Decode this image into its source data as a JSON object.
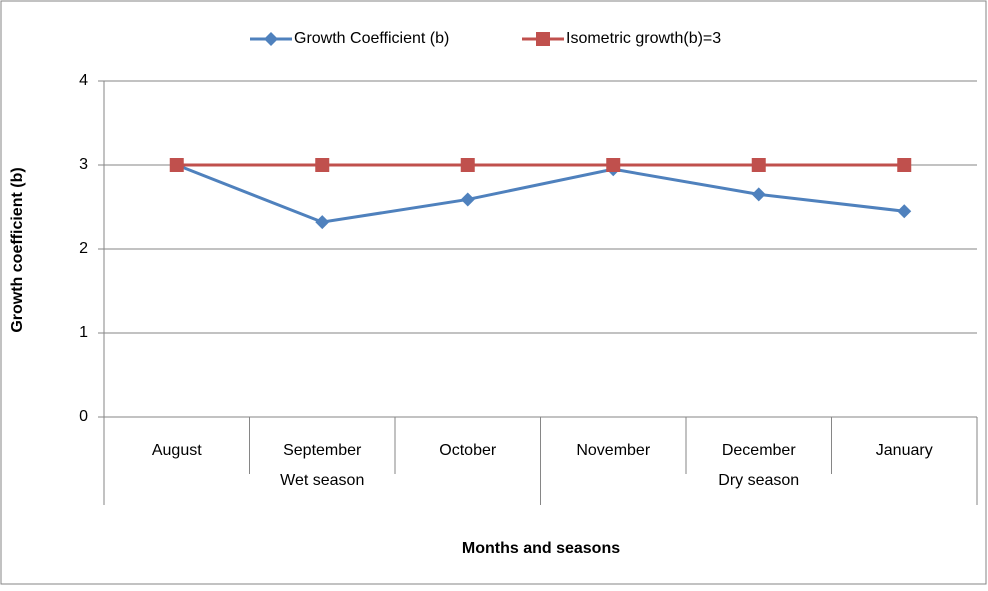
{
  "chart_data": {
    "type": "line",
    "x_label": "Months and seasons",
    "y_label": "Growth coefficient (b)",
    "categories": [
      "August",
      "September",
      "October",
      "November",
      "December",
      "January"
    ],
    "groups": [
      {
        "label": "Wet season",
        "from": 0,
        "to": 2
      },
      {
        "label": "Dry season",
        "from": 3,
        "to": 5
      }
    ],
    "series": [
      {
        "name": "Growth Coefficient (b)",
        "color": "#4f81bd",
        "marker": "diamond",
        "values": [
          3.0,
          2.32,
          2.59,
          2.95,
          2.65,
          2.45
        ]
      },
      {
        "name": "Isometric growth(b)=3",
        "color": "#c0504d",
        "marker": "square",
        "values": [
          3,
          3,
          3,
          3,
          3,
          3
        ]
      }
    ],
    "ylim": [
      0,
      4
    ],
    "yticks": [
      0,
      1,
      2,
      3,
      4
    ],
    "grid": true,
    "legend": "top"
  }
}
